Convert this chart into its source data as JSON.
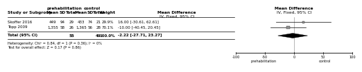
{
  "studies": [
    "Skoffer 2016",
    "Topp 2009"
  ],
  "prehab_mean": [
    449,
    1355
  ],
  "prehab_sd": [
    94,
    58
  ],
  "prehab_total": [
    29,
    26
  ],
  "control_mean": [
    433,
    1365
  ],
  "control_sd": [
    74,
    56
  ],
  "control_total": [
    21,
    28
  ],
  "weight": [
    "29.9%",
    "70.1%"
  ],
  "md": [
    16.0,
    -10.0
  ],
  "ci_low": [
    -30.61,
    -40.45
  ],
  "ci_high": [
    62.61,
    20.45
  ],
  "md_str": [
    "16.00 [-30.61, 62.61]",
    "-10.00 [-40.45, 20.45]"
  ],
  "total_n_prehab": 55,
  "total_n_control": 49,
  "total_weight": "100.0%",
  "total_md": -2.22,
  "total_ci_low": -27.71,
  "total_ci_high": 23.27,
  "total_md_str": "-2.22 [-27.71, 23.27]",
  "heterogeneity_text": "Heterogeneity: Chi² = 0.84, df = 1 (P = 0.36); I² = 0%",
  "overall_test_text": "Test for overall effect: Z = 0.17 (P = 0.86)",
  "col_header_prehab": "prehabilitation",
  "col_header_control": "control",
  "col_header_md": "Mean Difference",
  "col_header_md2": "IV, Fixed, 95% CI",
  "axis_min": -100,
  "axis_max": 100,
  "axis_ticks": [
    -100,
    -50,
    0,
    50,
    100
  ],
  "axis_label_left": "prehabilitation",
  "axis_label_right": "control",
  "background_color": "#ffffff"
}
